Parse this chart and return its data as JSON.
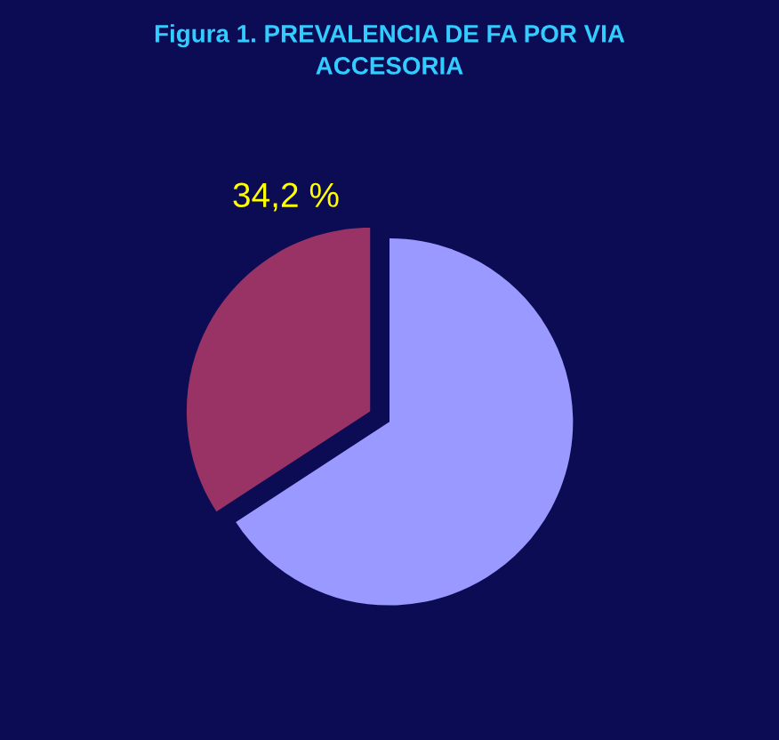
{
  "chart_data": {
    "type": "pie",
    "title": "Figura 1. PREVALENCIA DE FA POR VIA\nACCESORIA",
    "categories": [
      null,
      null
    ],
    "values": [
      34.2,
      65.8
    ],
    "value_labels": [
      "34,2 %",
      null
    ],
    "colors": [
      "#993366",
      "#9999ff"
    ]
  }
}
